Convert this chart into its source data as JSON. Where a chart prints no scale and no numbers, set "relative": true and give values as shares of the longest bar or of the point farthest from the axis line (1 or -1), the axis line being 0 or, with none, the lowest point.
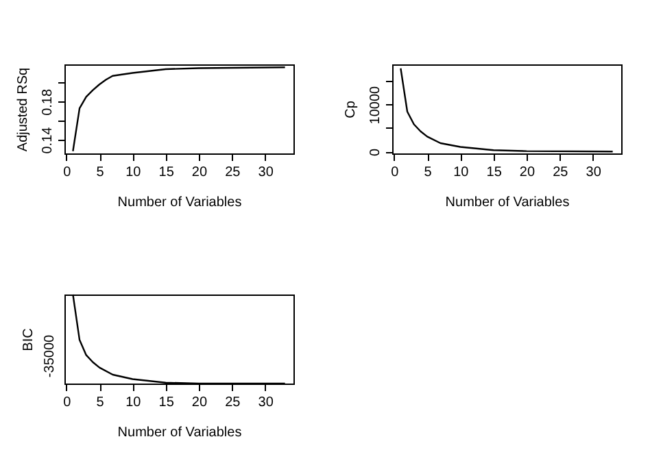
{
  "chart_data": [
    {
      "type": "line",
      "xlabel": "Number of Variables",
      "ylabel": "Adjusted RSq",
      "color": "#000000",
      "x": [
        1,
        2,
        3,
        4,
        5,
        6,
        7,
        10,
        15,
        20,
        33
      ],
      "values": [
        0.128,
        0.173,
        0.185,
        0.192,
        0.198,
        0.203,
        0.207,
        0.21,
        0.214,
        0.215,
        0.216
      ],
      "xlim": [
        -0.28,
        34.28
      ],
      "xticks": [
        0,
        5,
        10,
        15,
        20,
        25,
        30
      ],
      "ylim": [
        0.1257,
        0.219
      ],
      "yticks": [
        0.14,
        {
          "value": 0.16,
          "label": null
        },
        0.18,
        {
          "value": 0.2,
          "label": null
        }
      ]
    },
    {
      "type": "line",
      "xlabel": "Number of Variables",
      "ylabel": "Cp",
      "color": "#000000",
      "x": [
        1,
        2,
        3,
        4,
        5,
        7,
        10,
        15,
        20,
        33
      ],
      "values": [
        17700,
        8500,
        5800,
        4300,
        3200,
        1800,
        1000,
        300,
        100,
        0
      ],
      "xlim": [
        -0.28,
        34.28
      ],
      "xticks": [
        0,
        5,
        10,
        15,
        20,
        25,
        30
      ],
      "ylim": [
        -390,
        18540
      ],
      "yticks": [
        0,
        {
          "value": 5000,
          "label": null
        },
        10000,
        {
          "value": 15000,
          "label": null
        }
      ]
    },
    {
      "type": "line",
      "xlabel": "Number of Variables",
      "ylabel": "BIC",
      "color": "#000000",
      "x": [
        1,
        2,
        3,
        4,
        5,
        7,
        10,
        15,
        20,
        33
      ],
      "values": [
        1,
        0.49,
        0.32,
        0.24,
        0.18,
        0.1,
        0.05,
        0.01,
        0,
        0
      ],
      "relative": true,
      "annotations": [
        "-35000"
      ],
      "xlim": [
        -0.28,
        34.28
      ],
      "xticks": [
        0,
        5,
        10,
        15,
        20,
        25,
        30
      ]
    }
  ]
}
